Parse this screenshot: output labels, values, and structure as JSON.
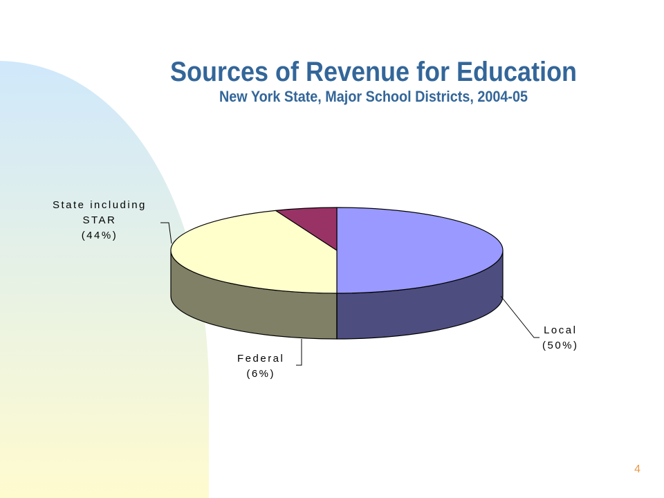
{
  "slide": {
    "title": "Sources of Revenue for Education",
    "subtitle": "New York State, Major School Districts, 2004-05",
    "page_number": "4"
  },
  "colors": {
    "title": "#336699",
    "decor_top": "#cfe8fb",
    "decor_bottom": "#fffbcf",
    "page_number": "#e89a4a"
  },
  "chart_data": {
    "type": "pie",
    "style": "3d",
    "title": "Sources of Revenue for Education",
    "subtitle": "New York State, Major School Districts, 2004-05",
    "categories": [
      "Local",
      "State including STAR",
      "Federal"
    ],
    "values": [
      50,
      44,
      6
    ],
    "unit": "%",
    "labels": [
      {
        "category": "Local",
        "line1": "Local",
        "line2": "(50%)"
      },
      {
        "category": "State including STAR",
        "line1": "State including",
        "line2": "STAR",
        "line3": "(44%)"
      },
      {
        "category": "Federal",
        "line1": "Federal",
        "line2": "(6%)"
      }
    ],
    "slice_colors": [
      {
        "top": "#9999ff",
        "side": "#4d4d80"
      },
      {
        "top": "#ffffcc",
        "side": "#808066"
      },
      {
        "top": "#993366",
        "side": "#4d1933"
      }
    ],
    "legend": "none",
    "grid": false
  }
}
